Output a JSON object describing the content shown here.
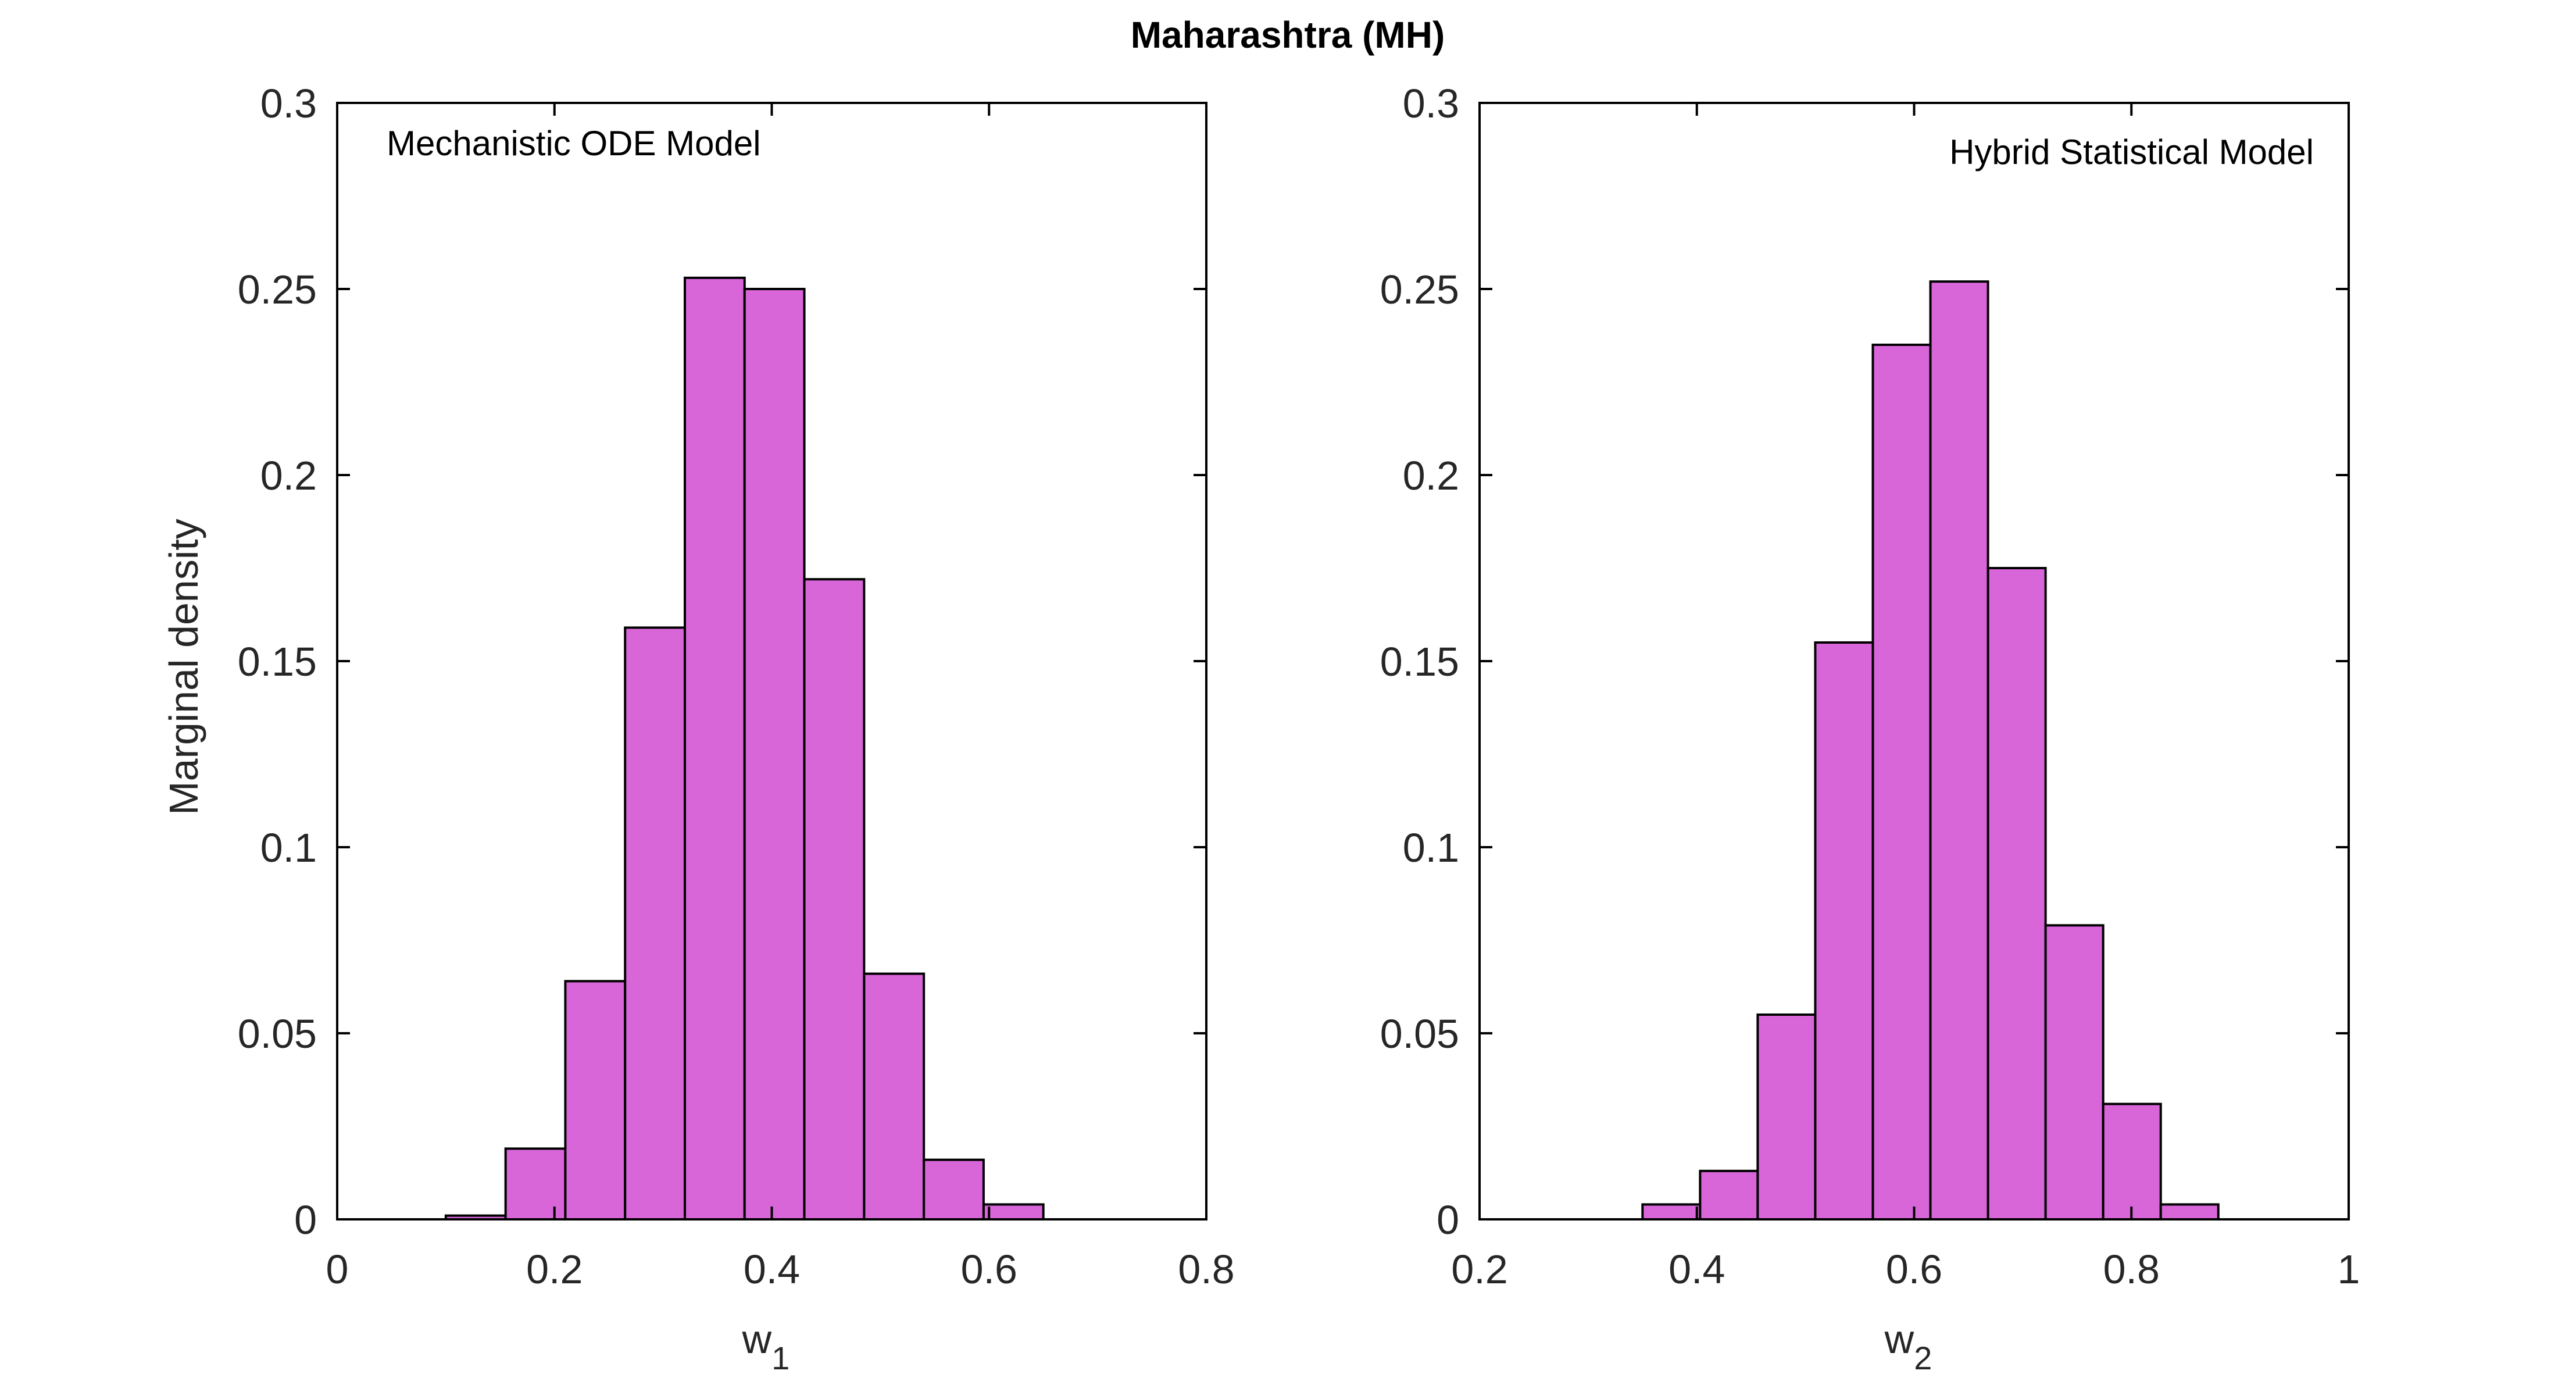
{
  "figure": {
    "title": "Maharashtra (MH)",
    "colors": {
      "bar_fill": "#d966d9",
      "bar_edge": "#000000",
      "axis": "#000000",
      "text": "#262626"
    }
  },
  "chart_data": [
    {
      "type": "bar",
      "subtype": "histogram",
      "annotation": "Mechanistic ODE Model",
      "annotation_position": "top-left",
      "xlabel": "w",
      "xlabel_subscript": "1",
      "ylabel": "Marginal density",
      "xlim": [
        0,
        0.8
      ],
      "ylim": [
        0,
        0.3
      ],
      "xticks": [
        0,
        0.2,
        0.4,
        0.6,
        0.8
      ],
      "xtick_labels": [
        "0",
        "0.2",
        "0.4",
        "0.6",
        "0.8"
      ],
      "yticks": [
        0,
        0.05,
        0.1,
        0.15,
        0.2,
        0.25,
        0.3
      ],
      "ytick_labels": [
        "0",
        "0.05",
        "0.1",
        "0.15",
        "0.2",
        "0.25",
        "0.3"
      ],
      "bin_edges": [
        0.1,
        0.155,
        0.21,
        0.265,
        0.32,
        0.375,
        0.43,
        0.485,
        0.54,
        0.595,
        0.65
      ],
      "values": [
        0.001,
        0.019,
        0.064,
        0.159,
        0.253,
        0.25,
        0.172,
        0.066,
        0.016,
        0.004
      ],
      "grid": false
    },
    {
      "type": "bar",
      "subtype": "histogram",
      "annotation": "Hybrid Statistical Model",
      "annotation_position": "top-right",
      "xlabel": "w",
      "xlabel_subscript": "2",
      "ylabel": "",
      "xlim": [
        0.2,
        1
      ],
      "ylim": [
        0,
        0.3
      ],
      "xticks": [
        0.2,
        0.4,
        0.6,
        0.8,
        1
      ],
      "xtick_labels": [
        "0.2",
        "0.4",
        "0.6",
        "0.8",
        "1"
      ],
      "yticks": [
        0,
        0.05,
        0.1,
        0.15,
        0.2,
        0.25,
        0.3
      ],
      "ytick_labels": [
        "0",
        "0.05",
        "0.1",
        "0.15",
        "0.2",
        "0.25",
        "0.3"
      ],
      "bin_edges": [
        0.35,
        0.403,
        0.456,
        0.509,
        0.562,
        0.615,
        0.668,
        0.721,
        0.774,
        0.827,
        0.88
      ],
      "values": [
        0.004,
        0.013,
        0.055,
        0.155,
        0.235,
        0.252,
        0.175,
        0.079,
        0.031,
        0.004
      ],
      "grid": false
    }
  ]
}
